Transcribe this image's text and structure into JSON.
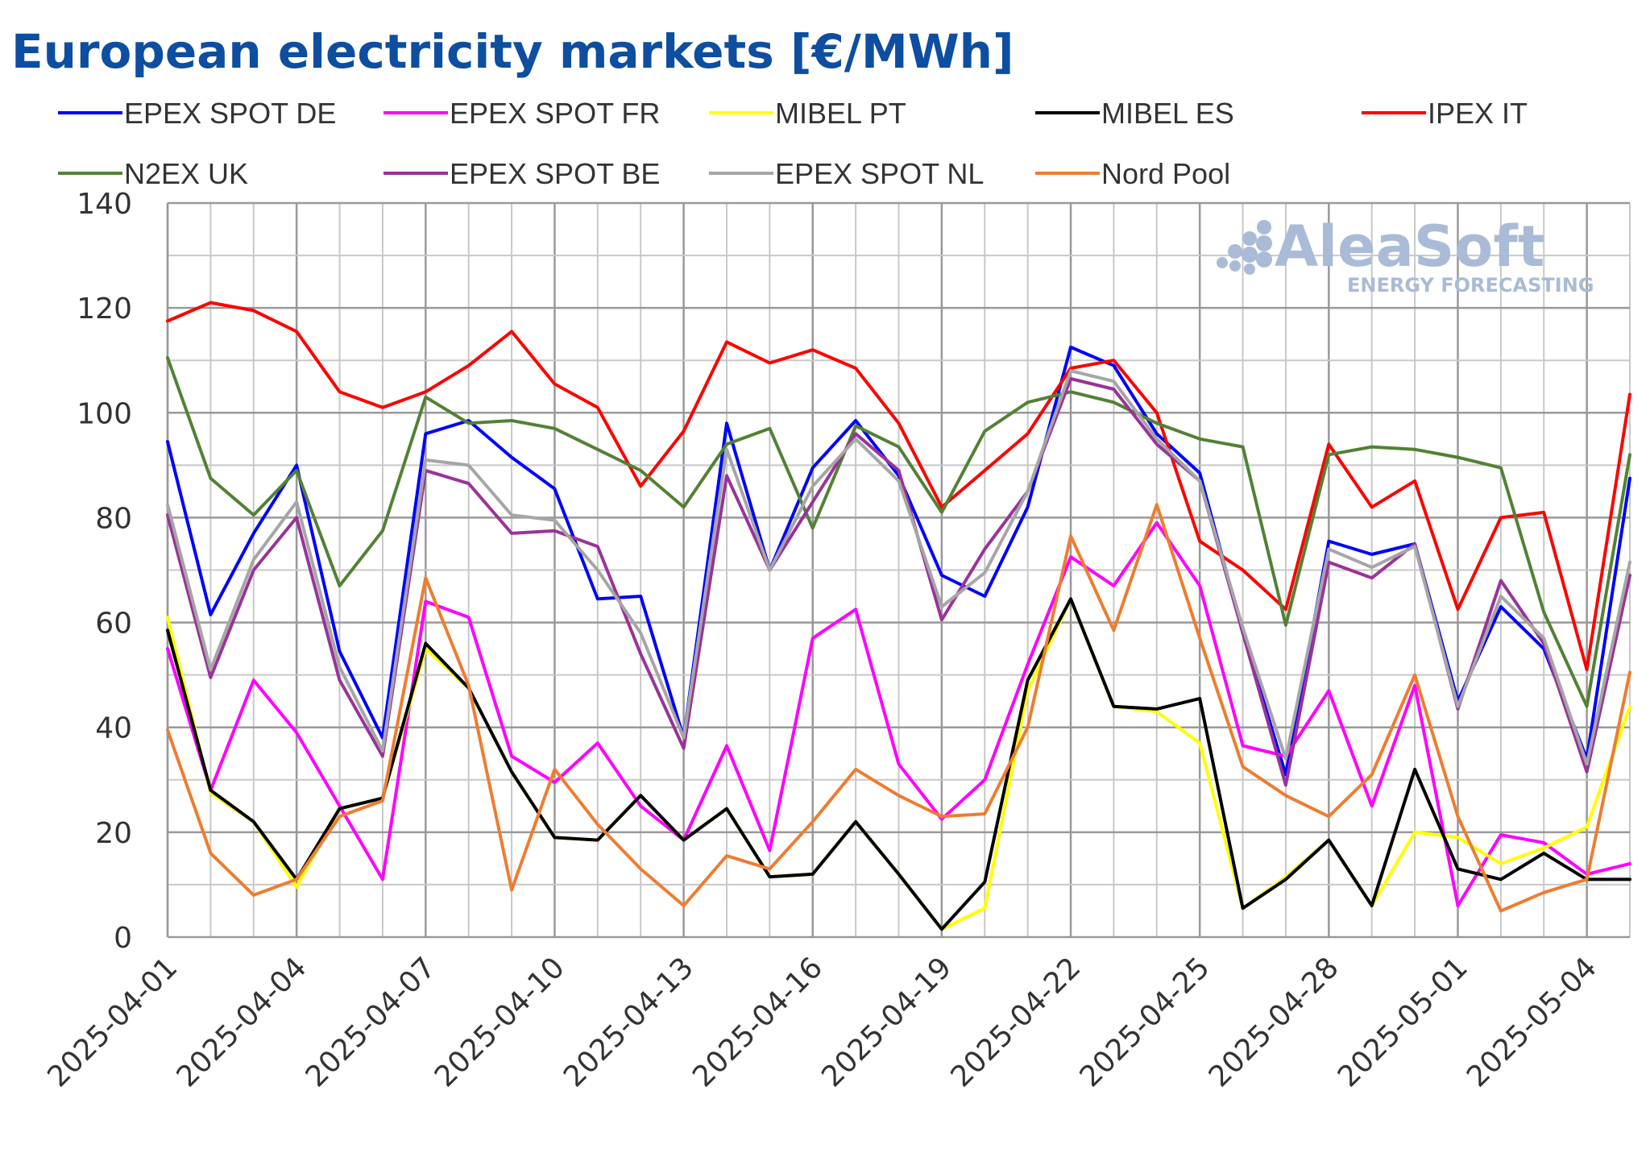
{
  "chart_data": {
    "type": "line",
    "title": "European electricity markets [€/MWh]",
    "xlabel": "",
    "ylabel": "",
    "ylim": [
      0,
      140
    ],
    "yticks": [
      0,
      20,
      40,
      60,
      80,
      100,
      120,
      140
    ],
    "grid": true,
    "legend_position": "top",
    "x": [
      "2025-04-01",
      "2025-04-02",
      "2025-04-03",
      "2025-04-04",
      "2025-04-05",
      "2025-04-06",
      "2025-04-07",
      "2025-04-08",
      "2025-04-09",
      "2025-04-10",
      "2025-04-11",
      "2025-04-12",
      "2025-04-13",
      "2025-04-14",
      "2025-04-15",
      "2025-04-16",
      "2025-04-17",
      "2025-04-18",
      "2025-04-19",
      "2025-04-20",
      "2025-04-21",
      "2025-04-22",
      "2025-04-23",
      "2025-04-24",
      "2025-04-25",
      "2025-04-26",
      "2025-04-27",
      "2025-04-28",
      "2025-04-29",
      "2025-04-30",
      "2025-05-01",
      "2025-05-02",
      "2025-05-03",
      "2025-05-04",
      "2025-05-05"
    ],
    "x_tick_labels": [
      "2025-04-01",
      "2025-04-04",
      "2025-04-07",
      "2025-04-10",
      "2025-04-13",
      "2025-04-16",
      "2025-04-19",
      "2025-04-22",
      "2025-04-25",
      "2025-04-28",
      "2025-05-01",
      "2025-05-04"
    ],
    "series": [
      {
        "name": "EPEX SPOT DE",
        "color": "#0000ff",
        "values": [
          94.5,
          61.5,
          77,
          90,
          54.5,
          38,
          96,
          98.5,
          91.5,
          85.5,
          64.5,
          65,
          38,
          98,
          70,
          89.5,
          98.5,
          88,
          69,
          65,
          82,
          112.5,
          109,
          96,
          88.5,
          58,
          31,
          75.5,
          73,
          75,
          45,
          63,
          55,
          34,
          87.5
        ]
      },
      {
        "name": "EPEX SPOT FR",
        "color": "#ff00ff",
        "values": [
          55,
          28,
          49,
          39,
          25,
          11,
          64,
          61,
          34.5,
          29.5,
          37,
          25,
          18.5,
          36.5,
          16.5,
          57,
          62.5,
          33,
          22.5,
          30,
          52,
          72.5,
          67,
          79,
          67,
          36.5,
          34.5,
          47,
          25,
          48,
          6,
          19.5,
          18,
          12,
          14
        ]
      },
      {
        "name": "MIBEL PT",
        "color": "#ffff00",
        "values": [
          61,
          27.5,
          22,
          9.5,
          24.5,
          26.5,
          55,
          47.5,
          31.5,
          19,
          18.5,
          27,
          18.5,
          24.5,
          11.5,
          12,
          22,
          12,
          1.5,
          5.5,
          47,
          64.5,
          44,
          43,
          37,
          5.5,
          11.5,
          18.5,
          6,
          20,
          19,
          14,
          17,
          21,
          44
        ]
      },
      {
        "name": "MIBEL ES",
        "color": "#000000",
        "values": [
          58.5,
          28,
          22,
          11,
          24.5,
          26.5,
          56,
          47.5,
          31.5,
          19,
          18.5,
          27,
          18.5,
          24.5,
          11.5,
          12,
          22,
          12,
          1.5,
          10.5,
          49,
          64.5,
          44,
          43.5,
          45.5,
          5.5,
          11,
          18.5,
          6,
          32,
          13,
          11,
          16,
          11,
          11
        ]
      },
      {
        "name": "IPEX IT",
        "color": "#ff0000",
        "values": [
          117.5,
          121,
          119.5,
          115.5,
          104,
          101,
          104,
          109,
          115.5,
          105.5,
          101,
          86,
          96.5,
          113.5,
          109.5,
          112,
          108.5,
          98,
          82,
          89,
          96,
          108.5,
          110,
          100,
          75.5,
          70,
          62.5,
          94,
          82,
          87,
          62.5,
          80,
          81,
          51,
          103.5
        ]
      },
      {
        "name": "N2EX UK",
        "color": "#538135",
        "values": [
          110.5,
          87.5,
          80.5,
          89,
          67,
          77.5,
          103,
          98,
          98.5,
          97,
          93,
          89,
          82,
          94,
          97,
          78,
          97.5,
          93.5,
          81,
          96.5,
          102,
          104,
          102,
          98,
          95,
          93.5,
          59.5,
          92,
          93.5,
          93,
          91.5,
          89.5,
          62,
          44,
          92
        ]
      },
      {
        "name": "EPEX SPOT BE",
        "color": "#993399",
        "values": [
          80.5,
          49.5,
          70,
          80,
          49,
          34.5,
          89,
          86.5,
          77,
          77.5,
          74.5,
          54,
          36,
          88,
          70,
          83,
          96,
          89,
          60.5,
          74,
          85,
          106.5,
          104.5,
          94,
          87,
          58,
          29,
          71.5,
          68.5,
          75,
          43.5,
          68,
          56,
          31.5,
          69
        ]
      },
      {
        "name": "EPEX SPOT NL",
        "color": "#a6a6a6",
        "values": [
          82.5,
          51,
          72,
          83,
          51.5,
          35.5,
          91,
          90,
          80.5,
          79.5,
          70,
          58,
          38,
          93,
          70,
          86,
          95,
          87,
          63,
          69.5,
          85,
          108,
          106,
          95,
          87,
          59,
          34,
          74,
          70.5,
          74.5,
          44,
          65,
          57,
          33,
          71.5
        ]
      },
      {
        "name": "Nord Pool",
        "color": "#ed7d31",
        "values": [
          39.5,
          16,
          8,
          11,
          23,
          26,
          68.5,
          48,
          9,
          32,
          21.5,
          13,
          6,
          15.5,
          13,
          22,
          32,
          27,
          23,
          23.5,
          40,
          76.5,
          58.5,
          82.5,
          57,
          32.5,
          27,
          23,
          31,
          50,
          23,
          5,
          8.5,
          11,
          50.5
        ]
      }
    ]
  },
  "legend": [
    {
      "name": "EPEX SPOT DE",
      "color": "#0000ff"
    },
    {
      "name": "EPEX SPOT FR",
      "color": "#ff00ff"
    },
    {
      "name": "MIBEL PT",
      "color": "#ffff00"
    },
    {
      "name": "MIBEL ES",
      "color": "#000000"
    },
    {
      "name": "IPEX IT",
      "color": "#ff0000"
    },
    {
      "name": "N2EX UK",
      "color": "#538135"
    },
    {
      "name": "EPEX SPOT BE",
      "color": "#993399"
    },
    {
      "name": "EPEX SPOT NL",
      "color": "#a6a6a6"
    },
    {
      "name": "Nord Pool",
      "color": "#ed7d31"
    }
  ],
  "watermark": {
    "main": "AleaSoft",
    "sub": "ENERGY FORECASTING",
    "color": "#a9bbd6"
  },
  "colors": {
    "title": "#0d4ea0",
    "grid_major": "#999999",
    "grid_minor": "#c8c8c8"
  }
}
